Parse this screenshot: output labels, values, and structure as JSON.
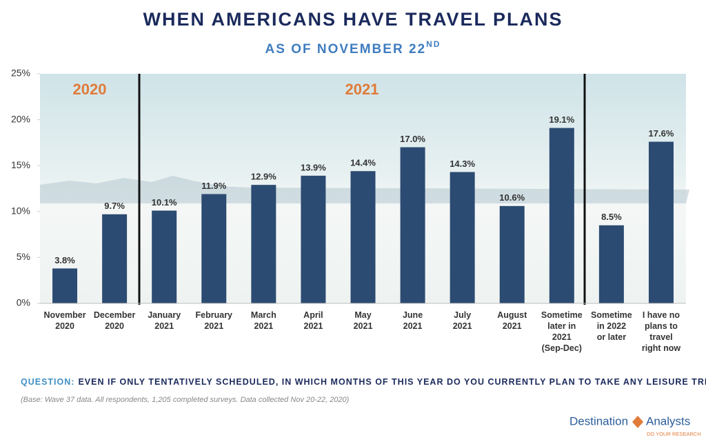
{
  "chart_data": {
    "type": "bar",
    "title": "WHEN AMERICANS HAVE TRAVEL PLANS",
    "subtitle": [
      "AS OF NOVEMBER 22",
      "ND"
    ],
    "categories": [
      "November\n2020",
      "December\n2020",
      "January\n2021",
      "February\n2021",
      "March\n2021",
      "April\n2021",
      "May\n2021",
      "June\n2021",
      "July\n2021",
      "August\n2021",
      "Sometime\nlater in\n2021\n(Sep-Dec)",
      "Sometime\nin 2022\nor later",
      "I have no\nplans to\ntravel\nright now"
    ],
    "values": [
      3.8,
      9.7,
      10.1,
      11.9,
      12.9,
      13.9,
      14.4,
      17.0,
      14.3,
      10.6,
      19.1,
      8.5,
      17.6
    ],
    "value_labels": [
      "3.8%",
      "9.7%",
      "10.1%",
      "11.9%",
      "12.9%",
      "13.9%",
      "14.4%",
      "17.0%",
      "14.3%",
      "10.6%",
      "19.1%",
      "8.5%",
      "17.6%"
    ],
    "color": "#2c4b72",
    "ylim": [
      0,
      25
    ],
    "yticks": [
      {
        "value": 0,
        "label": "0%"
      },
      {
        "value": 5,
        "label": "5%"
      },
      {
        "value": 10,
        "label": "10%"
      },
      {
        "value": 15,
        "label": "15%"
      },
      {
        "value": 20,
        "label": "20%"
      },
      {
        "value": 25,
        "label": "25%"
      }
    ],
    "annotations": [
      "2020",
      "2021"
    ],
    "question_label": "QUESTION:",
    "question": "EVEN IF ONLY TENTATIVELY SCHEDULED, IN WHICH MONTHS OF THIS YEAR DO YOU CURRENTLY PLAN TO TAKE ANY LEISURE TRIPS?",
    "note": "(Base: Wave 37 data. All respondents, 1,205 completed surveys. Data collected Nov 20-22, 2020)",
    "logo": [
      "Destination",
      "Analysts",
      "DO YOUR RESEARCH"
    ]
  }
}
